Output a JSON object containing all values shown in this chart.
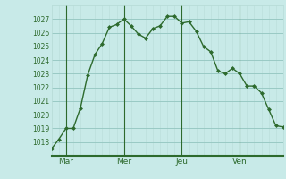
{
  "x": [
    0,
    1,
    2,
    3,
    4,
    5,
    6,
    7,
    8,
    9,
    10,
    11,
    12,
    13,
    14,
    15,
    16,
    17,
    18,
    19,
    20,
    21,
    22,
    23,
    24,
    25,
    26,
    27,
    28,
    29,
    30,
    31,
    32
  ],
  "y": [
    1017.5,
    1018.2,
    1019.0,
    1019.0,
    1020.5,
    1022.9,
    1024.4,
    1025.2,
    1026.4,
    1026.6,
    1027.0,
    1026.5,
    1025.9,
    1025.6,
    1026.3,
    1026.5,
    1027.2,
    1027.2,
    1026.7,
    1026.8,
    1026.1,
    1025.0,
    1024.6,
    1023.2,
    1023.0,
    1023.4,
    1023.0,
    1022.1,
    1022.1,
    1021.6,
    1020.4,
    1019.2,
    1019.1
  ],
  "line_color": "#2d6a2d",
  "marker_color": "#2d6a2d",
  "bg_color": "#c8eae8",
  "grid_color_minor": "#b8ddd9",
  "grid_color_major": "#99c9c4",
  "axis_color": "#2d6a2d",
  "ylim": [
    1017.4,
    1027.6
  ],
  "yticks": [
    1018,
    1019,
    1020,
    1021,
    1022,
    1023,
    1024,
    1025,
    1026,
    1027
  ],
  "xlim": [
    0,
    32
  ],
  "day_ticks": [
    {
      "x": 2,
      "label": "Mar"
    },
    {
      "x": 10,
      "label": "Mer"
    },
    {
      "x": 18,
      "label": "Jeu"
    },
    {
      "x": 26,
      "label": "Ven"
    }
  ],
  "day_lines": [
    2,
    10,
    18,
    26
  ]
}
